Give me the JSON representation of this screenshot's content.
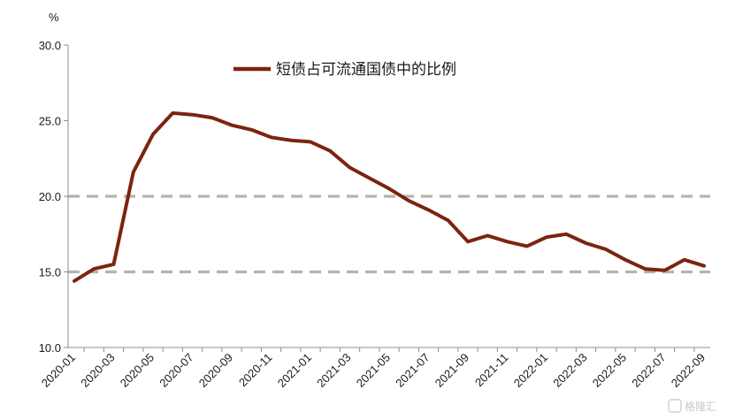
{
  "chart_data": {
    "type": "line",
    "ylabel": "%",
    "ylim": [
      10,
      30
    ],
    "yticks": [
      "10.0",
      "15.0",
      "20.0",
      "25.0",
      "30.0"
    ],
    "x_tick_labels": [
      "2020-01",
      "2020-03",
      "2020-05",
      "2020-07",
      "2020-09",
      "2020-11",
      "2021-01",
      "2021-03",
      "2021-05",
      "2021-07",
      "2021-09",
      "2021-11",
      "2022-01",
      "2022-03",
      "2022-05",
      "2022-07",
      "2022-09"
    ],
    "x": [
      "2020-01",
      "2020-02",
      "2020-03",
      "2020-04",
      "2020-05",
      "2020-06",
      "2020-07",
      "2020-08",
      "2020-09",
      "2020-10",
      "2020-11",
      "2020-12",
      "2021-01",
      "2021-02",
      "2021-03",
      "2021-04",
      "2021-05",
      "2021-06",
      "2021-07",
      "2021-08",
      "2021-09",
      "2021-10",
      "2021-11",
      "2021-12",
      "2022-01",
      "2022-02",
      "2022-03",
      "2022-04",
      "2022-05",
      "2022-06",
      "2022-07",
      "2022-08",
      "2022-09"
    ],
    "series": [
      {
        "name": "短债占可流通国债中的比例",
        "color": "#7b2410",
        "values": [
          14.4,
          15.2,
          15.5,
          21.6,
          24.1,
          25.5,
          25.4,
          25.2,
          24.7,
          24.4,
          23.9,
          23.7,
          23.6,
          23.0,
          21.9,
          21.2,
          20.5,
          19.7,
          19.1,
          18.4,
          17.0,
          17.4,
          17.0,
          16.7,
          17.3,
          17.5,
          16.9,
          16.5,
          15.8,
          15.2,
          15.1,
          15.8,
          15.4
        ]
      }
    ],
    "reference_lines": [
      {
        "y": 20,
        "color": "#b5b5a8",
        "style": "dashed"
      },
      {
        "y": 15,
        "color": "#b5b5a8",
        "style": "dashed"
      }
    ],
    "legend": "top-center",
    "grid": false
  },
  "watermark": "格隆汇"
}
